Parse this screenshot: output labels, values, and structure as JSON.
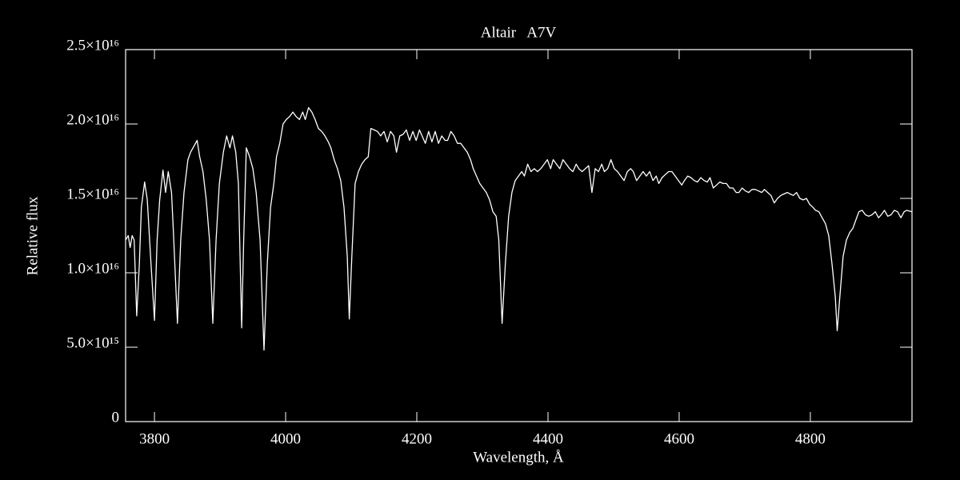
{
  "chart_data": {
    "type": "line",
    "title": "Altair   A7V",
    "xlabel": "Wavelength, Å",
    "ylabel": "Relative flux",
    "xlim": [
      3756,
      4955
    ],
    "xticks": [
      3800,
      4000,
      4200,
      4400,
      4600,
      4800
    ],
    "ylim": [
      0,
      2.5e+16
    ],
    "yticks": [
      0,
      {
        "value": 5000000000000000.0,
        "label": "5.0×10¹⁵"
      },
      {
        "value": 1e+16,
        "label": "1.0×10¹⁶"
      },
      {
        "value": 1.5e+16,
        "label": "1.5×10¹⁶"
      },
      {
        "value": 2e+16,
        "label": "2.0×10¹⁶"
      },
      {
        "value": 2.5e+16,
        "label": "2.5×10¹⁶"
      }
    ],
    "color": "#ffffff",
    "x": [
      3756,
      3760,
      3763,
      3766,
      3769,
      3773,
      3777,
      3780,
      3785,
      3789,
      3794,
      3800,
      3804,
      3808,
      3813,
      3817,
      3821,
      3826,
      3829,
      3835,
      3840,
      3845,
      3851,
      3855,
      3860,
      3865,
      3869,
      3874,
      3879,
      3884,
      3889,
      3894,
      3899,
      3905,
      3910,
      3915,
      3919,
      3924,
      3928,
      3933,
      3936,
      3940,
      3945,
      3950,
      3955,
      3961,
      3967,
      3972,
      3977,
      3982,
      3986,
      3991,
      3996,
      4001,
      4006,
      4011,
      4016,
      4021,
      4026,
      4030,
      4035,
      4040,
      4045,
      4050,
      4055,
      4060,
      4065,
      4069,
      4074,
      4079,
      4084,
      4089,
      4094,
      4097,
      4101,
      4106,
      4111,
      4116,
      4121,
      4126,
      4130,
      4135,
      4140,
      4145,
      4150,
      4155,
      4160,
      4165,
      4169,
      4174,
      4179,
      4184,
      4189,
      4194,
      4199,
      4204,
      4208,
      4213,
      4218,
      4223,
      4228,
      4233,
      4238,
      4243,
      4247,
      4252,
      4257,
      4262,
      4267,
      4272,
      4277,
      4282,
      4286,
      4291,
      4296,
      4301,
      4306,
      4311,
      4316,
      4321,
      4325,
      4330,
      4335,
      4340,
      4345,
      4350,
      4355,
      4360,
      4364,
      4369,
      4374,
      4379,
      4384,
      4389,
      4394,
      4399,
      4404,
      4408,
      4413,
      4418,
      4423,
      4428,
      4433,
      4438,
      4443,
      4447,
      4452,
      4457,
      4462,
      4467,
      4472,
      4477,
      4482,
      4486,
      4491,
      4496,
      4501,
      4506,
      4511,
      4516,
      4521,
      4526,
      4530,
      4535,
      4540,
      4545,
      4550,
      4555,
      4560,
      4565,
      4569,
      4574,
      4579,
      4584,
      4589,
      4594,
      4599,
      4604,
      4608,
      4613,
      4618,
      4623,
      4628,
      4633,
      4638,
      4643,
      4647,
      4652,
      4657,
      4662,
      4667,
      4672,
      4677,
      4682,
      4687,
      4691,
      4696,
      4701,
      4706,
      4711,
      4716,
      4721,
      4726,
      4730,
      4735,
      4740,
      4745,
      4750,
      4755,
      4760,
      4765,
      4769,
      4774,
      4779,
      4784,
      4789,
      4794,
      4799,
      4804,
      4808,
      4813,
      4818,
      4823,
      4828,
      4833,
      4838,
      4841,
      4845,
      4850,
      4855,
      4860,
      4865,
      4869,
      4874,
      4879,
      4884,
      4889,
      4894,
      4899,
      4904,
      4908,
      4913,
      4918,
      4923,
      4928,
      4933,
      4938,
      4943,
      4947,
      4955
    ],
    "values": [
      1.22e+16,
      1.25e+16,
      1.17e+16,
      1.25e+16,
      1.22e+16,
      7100000000000000.0,
      1.06e+16,
      1.44e+16,
      1.61e+16,
      1.49e+16,
      1.11e+16,
      6800000000000000.0,
      1.22e+16,
      1.49e+16,
      1.69e+16,
      1.54e+16,
      1.68e+16,
      1.54e+16,
      1.27e+16,
      6600000000000000.0,
      1.22e+16,
      1.54e+16,
      1.76e+16,
      1.81e+16,
      1.85e+16,
      1.89e+16,
      1.78e+16,
      1.68e+16,
      1.49e+16,
      1.22e+16,
      6600000000000000.0,
      1.22e+16,
      1.6e+16,
      1.81e+16,
      1.92e+16,
      1.84e+16,
      1.92e+16,
      1.81e+16,
      1.6e+16,
      6300000000000000.0,
      1.22e+16,
      1.84e+16,
      1.78e+16,
      1.7e+16,
      1.54e+16,
      1.22e+16,
      4800000000000000.0,
      1.06e+16,
      1.44e+16,
      1.6e+16,
      1.78e+16,
      1.87e+16,
      2e+16,
      2.03e+16,
      2.05e+16,
      2.08e+16,
      2.05e+16,
      2.03e+16,
      2.08e+16,
      2.03e+16,
      2.11e+16,
      2.08e+16,
      2.03e+16,
      1.97e+16,
      1.95e+16,
      1.92e+16,
      1.88e+16,
      1.84e+16,
      1.76e+16,
      1.7e+16,
      1.62e+16,
      1.44e+16,
      1.11e+16,
      6900000000000000.0,
      1.11e+16,
      1.6e+16,
      1.68e+16,
      1.73e+16,
      1.76e+16,
      1.78e+16,
      1.97e+16,
      1.96e+16,
      1.95e+16,
      1.92e+16,
      1.95e+16,
      1.88e+16,
      1.95e+16,
      1.92e+16,
      1.81e+16,
      1.92e+16,
      1.93e+16,
      1.96e+16,
      1.89e+16,
      1.95e+16,
      1.89e+16,
      1.96e+16,
      1.92e+16,
      1.87e+16,
      1.95e+16,
      1.88e+16,
      1.95e+16,
      1.87e+16,
      1.92e+16,
      1.89e+16,
      1.89e+16,
      1.95e+16,
      1.92e+16,
      1.87e+16,
      1.87e+16,
      1.84e+16,
      1.81e+16,
      1.76e+16,
      1.7e+16,
      1.65e+16,
      1.6e+16,
      1.57e+16,
      1.54e+16,
      1.49e+16,
      1.41e+16,
      1.38e+16,
      1.22e+16,
      6600000000000000.0,
      1.06e+16,
      1.38e+16,
      1.54e+16,
      1.62e+16,
      1.65e+16,
      1.68e+16,
      1.65e+16,
      1.73e+16,
      1.68e+16,
      1.7e+16,
      1.68e+16,
      1.7e+16,
      1.73e+16,
      1.76e+16,
      1.7e+16,
      1.76e+16,
      1.73e+16,
      1.7e+16,
      1.76e+16,
      1.73e+16,
      1.7e+16,
      1.68e+16,
      1.73e+16,
      1.7e+16,
      1.68e+16,
      1.7e+16,
      1.72e+16,
      1.54e+16,
      1.7e+16,
      1.68e+16,
      1.73e+16,
      1.68e+16,
      1.7e+16,
      1.76e+16,
      1.7e+16,
      1.68e+16,
      1.65e+16,
      1.62e+16,
      1.68e+16,
      1.7e+16,
      1.68e+16,
      1.62e+16,
      1.65e+16,
      1.68e+16,
      1.65e+16,
      1.68e+16,
      1.62e+16,
      1.65e+16,
      1.6e+16,
      1.64e+16,
      1.66e+16,
      1.68e+16,
      1.68e+16,
      1.65e+16,
      1.62e+16,
      1.59e+16,
      1.62e+16,
      1.65e+16,
      1.64e+16,
      1.62e+16,
      1.61e+16,
      1.64e+16,
      1.62e+16,
      1.61e+16,
      1.64e+16,
      1.57e+16,
      1.59e+16,
      1.61e+16,
      1.6e+16,
      1.6e+16,
      1.57e+16,
      1.57e+16,
      1.54e+16,
      1.54e+16,
      1.57e+16,
      1.55e+16,
      1.54e+16,
      1.56e+16,
      1.56e+16,
      1.55e+16,
      1.54e+16,
      1.56e+16,
      1.54e+16,
      1.52e+16,
      1.47e+16,
      1.5e+16,
      1.52e+16,
      1.53e+16,
      1.54e+16,
      1.53e+16,
      1.52e+16,
      1.54e+16,
      1.5e+16,
      1.49e+16,
      1.5e+16,
      1.46e+16,
      1.44e+16,
      1.42e+16,
      1.41e+16,
      1.37e+16,
      1.33e+16,
      1.25e+16,
      1.06e+16,
      8400000000000000.0,
      6100000000000000.0,
      8400000000000000.0,
      1.11e+16,
      1.22e+16,
      1.27e+16,
      1.3e+16,
      1.35e+16,
      1.41e+16,
      1.42e+16,
      1.39e+16,
      1.38e+16,
      1.39e+16,
      1.41e+16,
      1.37e+16,
      1.39e+16,
      1.42e+16,
      1.38e+16,
      1.39e+16,
      1.42e+16,
      1.41e+16,
      1.37e+16,
      1.41e+16,
      1.42e+16,
      1.41e+16
    ]
  }
}
